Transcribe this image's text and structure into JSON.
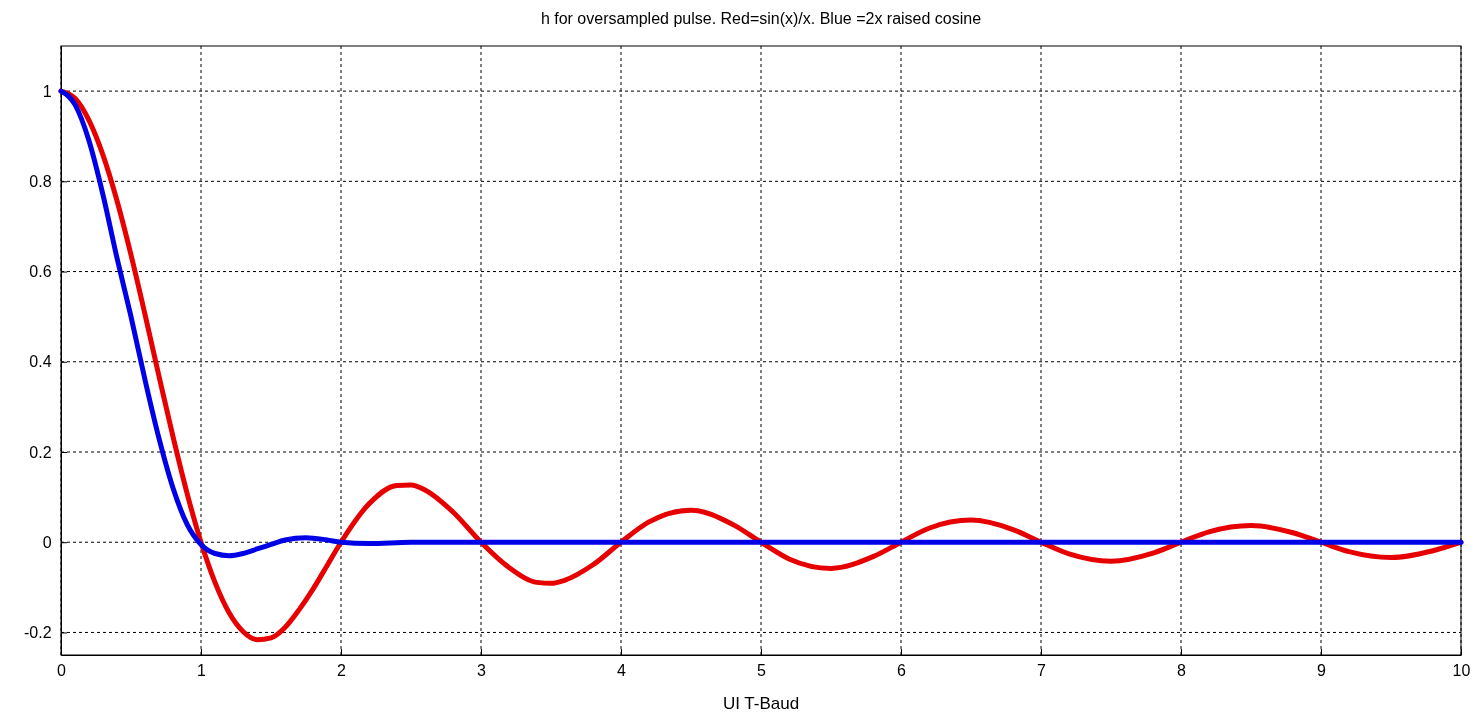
{
  "chart_data": {
    "type": "line",
    "title": "h for oversampled pulse. Red=sin(x)/x. Blue =2x raised cosine",
    "xlabel": "UI  T-Baud",
    "xlim": [
      0,
      10
    ],
    "xticks": [
      0,
      1,
      2,
      3,
      4,
      5,
      6,
      7,
      8,
      9,
      10
    ],
    "ylim": [
      -0.25,
      1.1
    ],
    "yticks": [
      -0.2,
      0,
      0.2,
      0.4,
      0.6,
      0.8,
      1
    ],
    "grid": true,
    "marker": "none",
    "line_style": "solid",
    "series": [
      {
        "color": "#e60000",
        "x": [
          0,
          0.1,
          0.2,
          0.3,
          0.4,
          0.5,
          0.6,
          0.7,
          0.8,
          0.9,
          1,
          1.1,
          1.2,
          1.3,
          1.4,
          1.5,
          1.6,
          1.7,
          1.8,
          1.9,
          2,
          2.2,
          2.4,
          2.5,
          2.6,
          2.8,
          3,
          3.2,
          3.4,
          3.5,
          3.6,
          3.8,
          4,
          4.2,
          4.5,
          4.8,
          5,
          5.2,
          5.5,
          5.8,
          6,
          6.2,
          6.5,
          6.8,
          7,
          7.2,
          7.5,
          7.8,
          8,
          8.2,
          8.5,
          8.8,
          9,
          9.2,
          9.5,
          9.8,
          10
        ],
        "values": [
          1,
          0.984,
          0.935,
          0.858,
          0.757,
          0.637,
          0.505,
          0.368,
          0.234,
          0.109,
          0,
          -0.089,
          -0.156,
          -0.198,
          -0.216,
          -0.212,
          -0.189,
          -0.15,
          -0.104,
          -0.052,
          0,
          0.085,
          0.126,
          0.127,
          0.116,
          0.067,
          0,
          -0.056,
          -0.089,
          -0.091,
          -0.084,
          -0.05,
          0,
          0.045,
          0.071,
          0.039,
          0,
          -0.037,
          -0.058,
          -0.032,
          0,
          0.031,
          0.049,
          0.028,
          0,
          -0.026,
          -0.042,
          -0.024,
          0,
          0.023,
          0.037,
          0.021,
          0,
          -0.021,
          -0.034,
          -0.019,
          0
        ]
      },
      {
        "color": "#0000e6",
        "x": [
          0,
          0.1,
          0.2,
          0.3,
          0.4,
          0.5,
          0.6,
          0.7,
          0.8,
          0.9,
          1,
          1.1,
          1.2,
          1.3,
          1.4,
          1.5,
          1.6,
          1.75,
          1.9,
          2,
          2.2,
          2.5,
          10
        ],
        "values": [
          1,
          0.97,
          0.89,
          0.77,
          0.63,
          0.5,
          0.36,
          0.23,
          0.12,
          0.04,
          -0.005,
          -0.025,
          -0.03,
          -0.025,
          -0.015,
          -0.005,
          0.005,
          0.01,
          0.005,
          0,
          -0.003,
          0,
          0
        ]
      }
    ]
  }
}
